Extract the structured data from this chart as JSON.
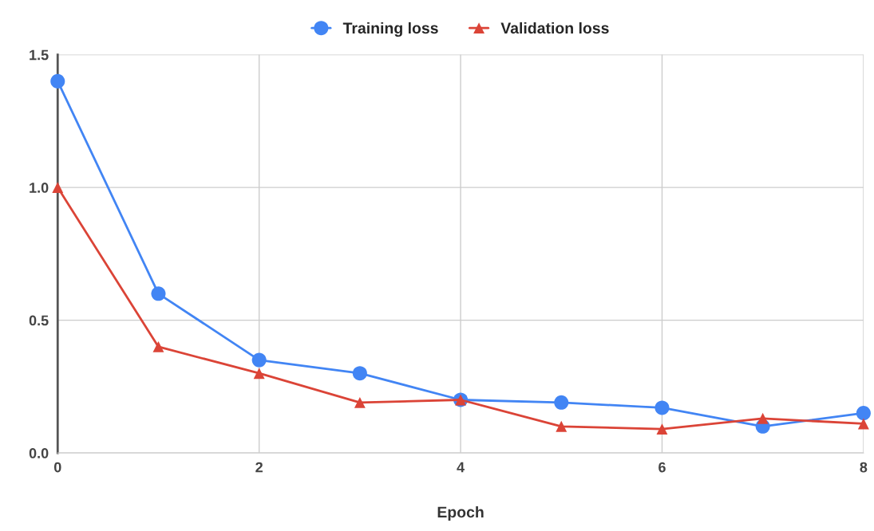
{
  "chart_data": {
    "type": "line",
    "xlabel": "Epoch",
    "x": [
      0,
      1,
      2,
      3,
      4,
      5,
      6,
      7,
      8
    ],
    "series": [
      {
        "name": "Training loss",
        "color": "#4285f4",
        "marker": "circle",
        "values": [
          1.4,
          0.6,
          0.35,
          0.3,
          0.2,
          0.19,
          0.17,
          0.1,
          0.15
        ]
      },
      {
        "name": "Validation loss",
        "color": "#db4437",
        "marker": "triangle",
        "values": [
          1.0,
          0.4,
          0.3,
          0.19,
          0.2,
          0.1,
          0.09,
          0.13,
          0.11
        ]
      }
    ],
    "xlim": [
      0,
      8
    ],
    "xticks": [
      0,
      2,
      4,
      6,
      8
    ],
    "ylim": [
      0,
      1.5
    ],
    "yticks": [
      {
        "value": 0,
        "label": "0.0"
      },
      0.5,
      {
        "value": 1,
        "label": "1.0"
      },
      1.5
    ],
    "grid": true,
    "legend": "top",
    "line_style": "solid"
  }
}
